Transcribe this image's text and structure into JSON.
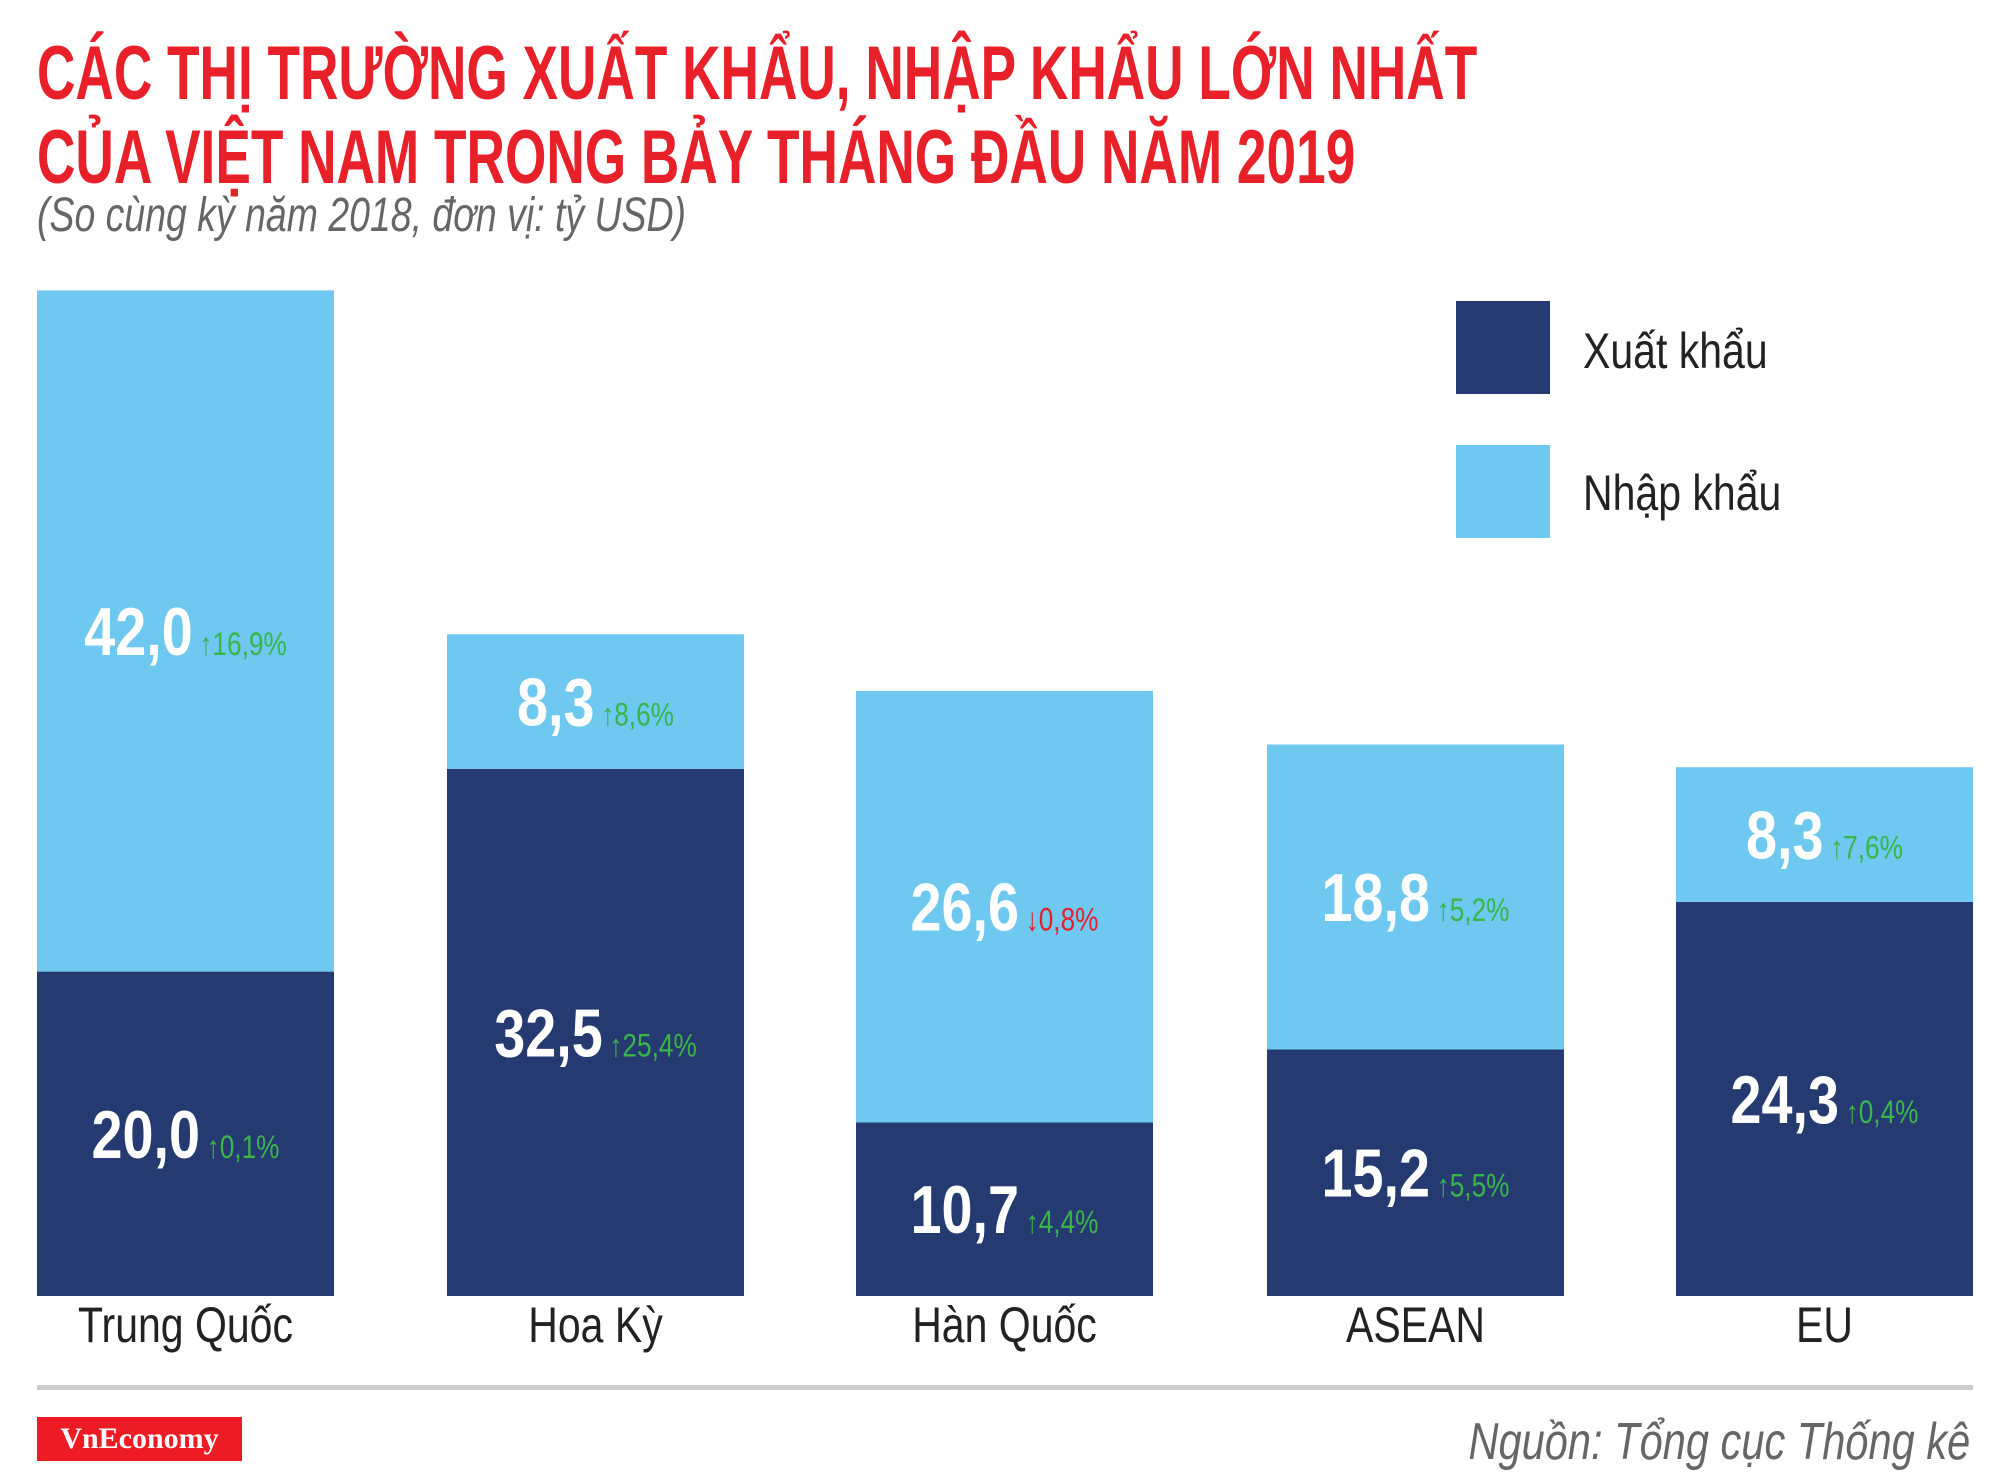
{
  "title_line1": "CÁC THỊ TRƯỜNG XUẤT KHẨU, NHẬP KHẨU LỚN NHẤT",
  "title_line2": "CỦA VIỆT NAM TRONG BẢY THÁNG ĐẦU NĂM 2019",
  "subtitle": "(So cùng kỳ năm 2018, đơn vị: tỷ USD)",
  "logo": "VnEconomy",
  "source": "Nguồn: Tổng cục Thống kê",
  "colors": {
    "export": "#253a70",
    "import": "#6ec8f0",
    "title": "#e8202a",
    "increase": "#39b54a",
    "decrease": "#e8202a"
  },
  "chart_data": {
    "type": "bar",
    "stacked": true,
    "categories": [
      "Trung Quốc",
      "Hoa Kỳ",
      "Hàn Quốc",
      "ASEAN",
      "EU"
    ],
    "series": [
      {
        "name": "Xuất khẩu",
        "values": [
          20.0,
          32.5,
          10.7,
          15.2,
          24.3
        ],
        "labels": [
          "20,0",
          "32,5",
          "10,7",
          "15,2",
          "24,3"
        ],
        "changes": [
          "0,1%",
          "25,4%",
          "4,4%",
          "5,5%",
          "0,4%"
        ],
        "directions": [
          "up",
          "up",
          "up",
          "up",
          "up"
        ]
      },
      {
        "name": "Nhập khẩu",
        "values": [
          42.0,
          8.3,
          26.6,
          18.8,
          8.3
        ],
        "labels": [
          "42,0",
          "8,3",
          "26,6",
          "18,8",
          "8,3"
        ],
        "changes": [
          "16,9%",
          "8,6%",
          "0,8%",
          "5,2%",
          "7,6%"
        ],
        "directions": [
          "up",
          "up",
          "down",
          "up",
          "up"
        ]
      }
    ],
    "legend": "top-right",
    "grid": false
  }
}
